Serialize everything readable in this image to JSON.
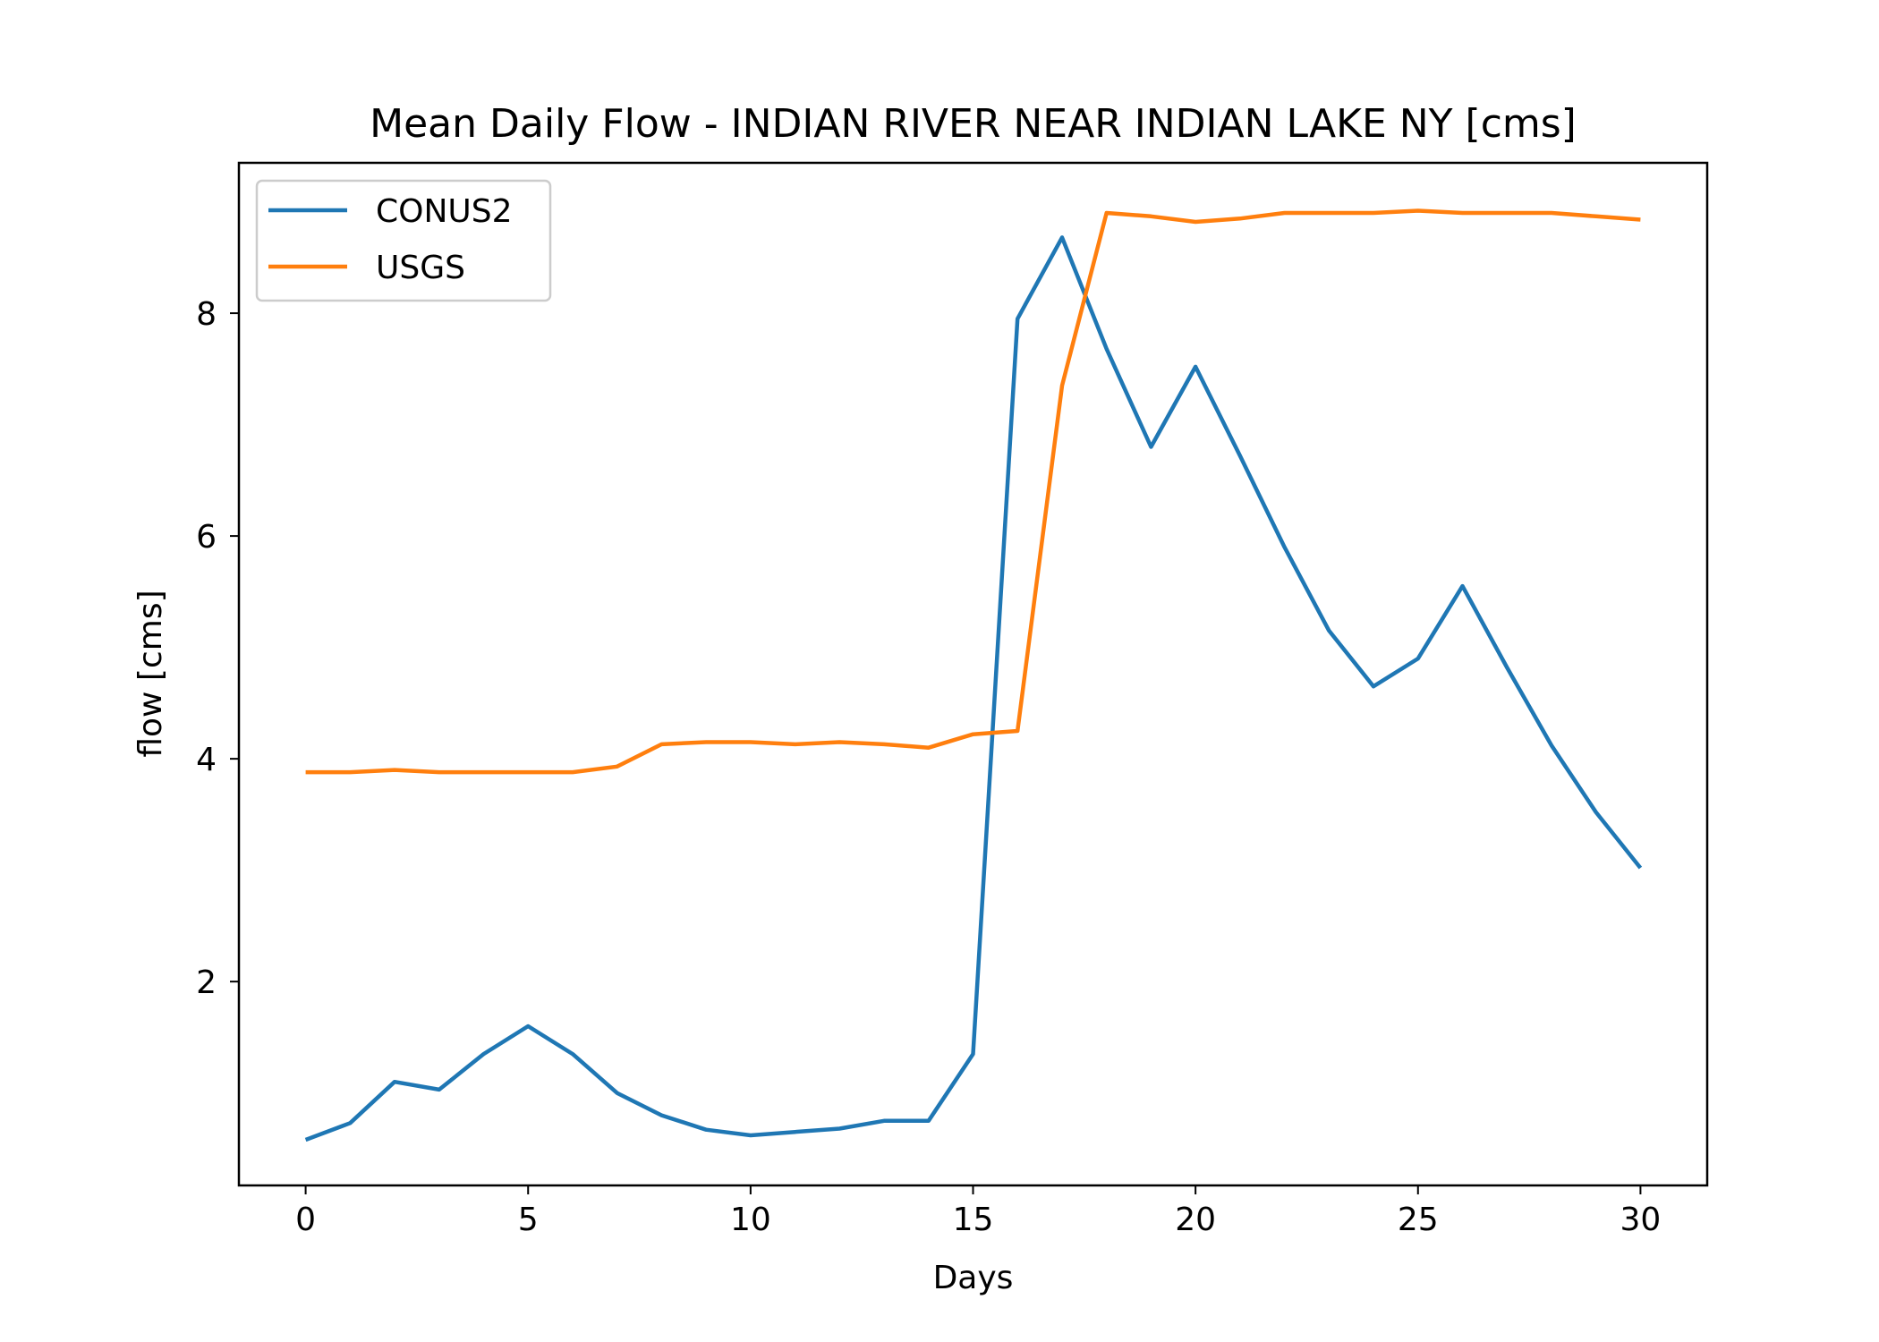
{
  "chart_data": {
    "type": "line",
    "title": "Mean Daily Flow - INDIAN RIVER NEAR INDIAN LAKE NY [cms]",
    "xlabel": "Days",
    "ylabel": "flow [cms]",
    "xlim": [
      -1.5,
      31.5
    ],
    "ylim": [
      0.17,
      9.35
    ],
    "xticks": [
      0,
      5,
      10,
      15,
      20,
      25,
      30
    ],
    "yticks": [
      2,
      4,
      6,
      8
    ],
    "grid": false,
    "legend_position": "upper left",
    "x": [
      0,
      1,
      2,
      3,
      4,
      5,
      6,
      7,
      8,
      9,
      10,
      11,
      12,
      13,
      14,
      15,
      16,
      17,
      18,
      19,
      20,
      21,
      22,
      23,
      24,
      25,
      26,
      27,
      28,
      29,
      30
    ],
    "series": [
      {
        "name": "CONUS2",
        "color": "#1f77b4",
        "values": [
          0.58,
          0.73,
          1.1,
          1.03,
          1.35,
          1.6,
          1.35,
          1.0,
          0.8,
          0.67,
          0.62,
          0.65,
          0.68,
          0.75,
          0.75,
          1.35,
          7.95,
          8.68,
          7.68,
          6.8,
          7.52,
          6.72,
          5.9,
          5.15,
          4.65,
          4.9,
          5.55,
          4.82,
          4.12,
          3.52,
          3.02
        ]
      },
      {
        "name": "USGS",
        "color": "#ff7f0e",
        "values": [
          3.88,
          3.88,
          3.9,
          3.88,
          3.88,
          3.88,
          3.88,
          3.93,
          4.13,
          4.15,
          4.15,
          4.13,
          4.15,
          4.13,
          4.1,
          4.22,
          4.25,
          7.35,
          8.9,
          8.87,
          8.82,
          8.85,
          8.9,
          8.9,
          8.9,
          8.92,
          8.9,
          8.9,
          8.9,
          8.87,
          8.84
        ]
      }
    ]
  }
}
